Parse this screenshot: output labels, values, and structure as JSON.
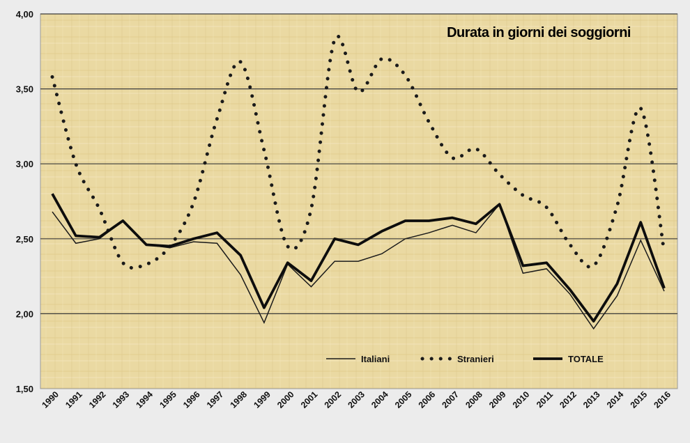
{
  "chart_data": {
    "type": "line",
    "title": "Durata in giorni dei soggiorni",
    "xlabel": "",
    "ylabel": "",
    "ylim": [
      1.5,
      4.0
    ],
    "yticks": [
      1.5,
      2.0,
      2.5,
      3.0,
      3.5,
      4.0
    ],
    "ytick_labels": [
      "1,50",
      "2,00",
      "2,50",
      "3,00",
      "3,50",
      "4,00"
    ],
    "grid": "horizontal",
    "legend_position": "bottom-center",
    "background_color": "#ead9a2",
    "categories": [
      "1990",
      "1991",
      "1992",
      "1993",
      "1994",
      "1995",
      "1996",
      "1997",
      "1998",
      "1999",
      "2000",
      "2001",
      "2002",
      "2003",
      "2004",
      "2005",
      "2006",
      "2007",
      "2008",
      "2009",
      "2010",
      "2011",
      "2012",
      "2013",
      "2014",
      "2015",
      "2016"
    ],
    "series": [
      {
        "name": "Italiani",
        "style": "thin",
        "color": "#1a1a1a",
        "values": [
          2.68,
          2.47,
          2.5,
          2.62,
          2.46,
          2.44,
          2.48,
          2.47,
          2.26,
          1.94,
          2.33,
          2.18,
          2.35,
          2.35,
          2.4,
          2.5,
          2.54,
          2.59,
          2.54,
          2.73,
          2.27,
          2.3,
          2.13,
          1.9,
          2.12,
          2.49,
          2.15
        ]
      },
      {
        "name": "Stranieri",
        "style": "dotted",
        "color": "#1a1a1a",
        "values": [
          3.58,
          3.0,
          2.7,
          2.34,
          2.33,
          2.45,
          2.74,
          3.3,
          3.68,
          3.09,
          2.45,
          2.7,
          3.83,
          3.48,
          3.7,
          3.59,
          3.28,
          3.04,
          3.1,
          2.93,
          2.79,
          2.71,
          2.46,
          2.32,
          2.72,
          3.37,
          2.41
        ]
      },
      {
        "name": "TOTALE",
        "style": "thick",
        "color": "#0d0d0d",
        "values": [
          2.8,
          2.52,
          2.51,
          2.62,
          2.46,
          2.45,
          2.5,
          2.54,
          2.39,
          2.04,
          2.34,
          2.22,
          2.5,
          2.46,
          2.55,
          2.62,
          2.62,
          2.64,
          2.6,
          2.73,
          2.32,
          2.34,
          2.16,
          1.95,
          2.2,
          2.61,
          2.17
        ]
      }
    ]
  }
}
